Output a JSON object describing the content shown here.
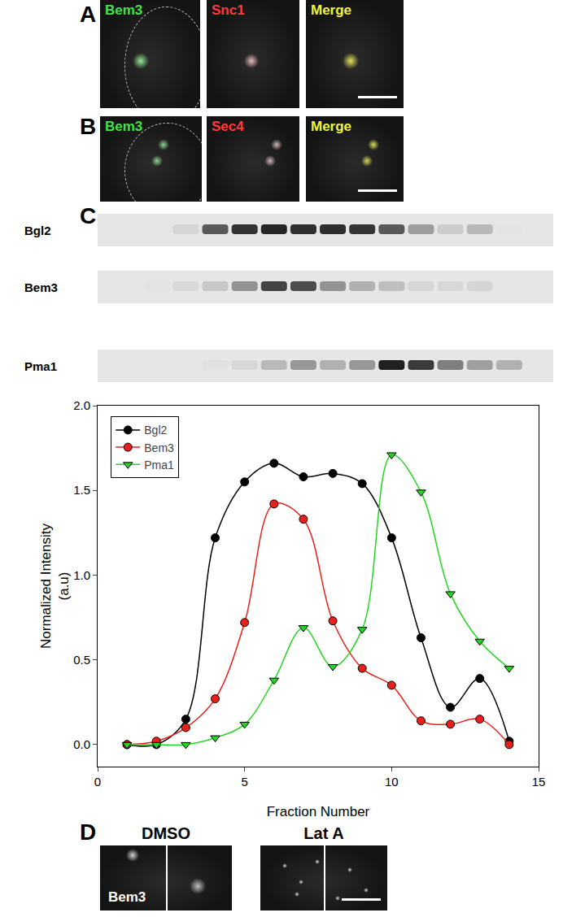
{
  "chart_data": {
    "type": "line",
    "x_label": "Fraction Number",
    "y_label": "Normalized Intensity\n(a.u)",
    "x": [
      1,
      2,
      3,
      4,
      5,
      6,
      7,
      8,
      9,
      10,
      11,
      12,
      13,
      14
    ],
    "series": [
      {
        "name": "Bgl2",
        "color": "#000000",
        "marker": "circle",
        "values": [
          0,
          0,
          0.15,
          1.22,
          1.55,
          1.66,
          1.58,
          1.6,
          1.54,
          1.22,
          0.63,
          0.22,
          0.39,
          0.02
        ]
      },
      {
        "name": "Bem3",
        "color": "#e8201c",
        "marker": "circle",
        "values": [
          0,
          0.02,
          0.1,
          0.27,
          0.72,
          1.42,
          1.33,
          0.73,
          0.45,
          0.35,
          0.14,
          0.12,
          0.15,
          0
        ]
      },
      {
        "name": "Pma1",
        "color": "#22d622",
        "marker": "triangle-down",
        "values": [
          0,
          0,
          0,
          0.04,
          0.12,
          0.38,
          0.69,
          0.46,
          0.68,
          1.71,
          1.49,
          0.89,
          0.61,
          0.45
        ]
      }
    ],
    "xlim": [
      0,
      15
    ],
    "xticks": [
      0,
      5,
      10,
      15
    ],
    "ylim": [
      -0.13,
      2.0
    ],
    "yticks": [
      {
        "value": 0,
        "label": "0.0"
      },
      {
        "value": 0.5,
        "label": "0.5"
      },
      {
        "value": 1,
        "label": "1.0"
      },
      {
        "value": 1.5,
        "label": "1.5"
      },
      {
        "value": 2,
        "label": "2.0"
      }
    ],
    "legend": "upper left",
    "grid": false
  },
  "figure": {
    "panels": [
      {
        "label": "A",
        "images": [
          {
            "text": "Bem3",
            "color": "#44e044"
          },
          {
            "text": "Snc1",
            "color": "#ff3a3a"
          },
          {
            "text": "Merge",
            "color": "#f2f23a"
          }
        ]
      },
      {
        "label": "B",
        "images": [
          {
            "text": "Bem3",
            "color": "#44e044"
          },
          {
            "text": "Sec4",
            "color": "#ff3a3a"
          },
          {
            "text": "Merge",
            "color": "#f2f23a"
          }
        ]
      },
      {
        "label": "C"
      },
      {
        "label": "D",
        "images": [
          {
            "title": "DMSO",
            "text": "Bem3",
            "color": "#ffffff"
          },
          {
            "title": "Lat A"
          }
        ]
      }
    ]
  }
}
